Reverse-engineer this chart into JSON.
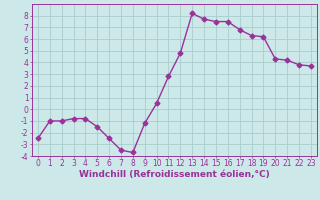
{
  "x": [
    0,
    1,
    2,
    3,
    4,
    5,
    6,
    7,
    8,
    9,
    10,
    11,
    12,
    13,
    14,
    15,
    16,
    17,
    18,
    19,
    20,
    21,
    22,
    23
  ],
  "y": [
    -2.5,
    -1.0,
    -1.0,
    -0.8,
    -0.8,
    -1.5,
    -2.5,
    -3.5,
    -3.7,
    -1.2,
    0.5,
    2.8,
    4.8,
    8.2,
    7.7,
    7.5,
    7.5,
    6.8,
    6.3,
    6.2,
    4.3,
    4.2,
    3.8,
    3.7
  ],
  "line_color": "#993399",
  "marker": "D",
  "markersize": 2.5,
  "linewidth": 1.0,
  "xlabel": "Windchill (Refroidissement éolien,°C)",
  "xlim": [
    -0.5,
    23.5
  ],
  "ylim": [
    -4,
    9
  ],
  "yticks": [
    -4,
    -3,
    -2,
    -1,
    0,
    1,
    2,
    3,
    4,
    5,
    6,
    7,
    8
  ],
  "xticks": [
    0,
    1,
    2,
    3,
    4,
    5,
    6,
    7,
    8,
    9,
    10,
    11,
    12,
    13,
    14,
    15,
    16,
    17,
    18,
    19,
    20,
    21,
    22,
    23
  ],
  "bg_color": "#cce8e8",
  "grid_color": "#aacccc",
  "line_border_color": "#993399",
  "tick_color": "#993399",
  "label_color": "#993399",
  "xlabel_fontsize": 6.5,
  "tick_fontsize": 5.5
}
